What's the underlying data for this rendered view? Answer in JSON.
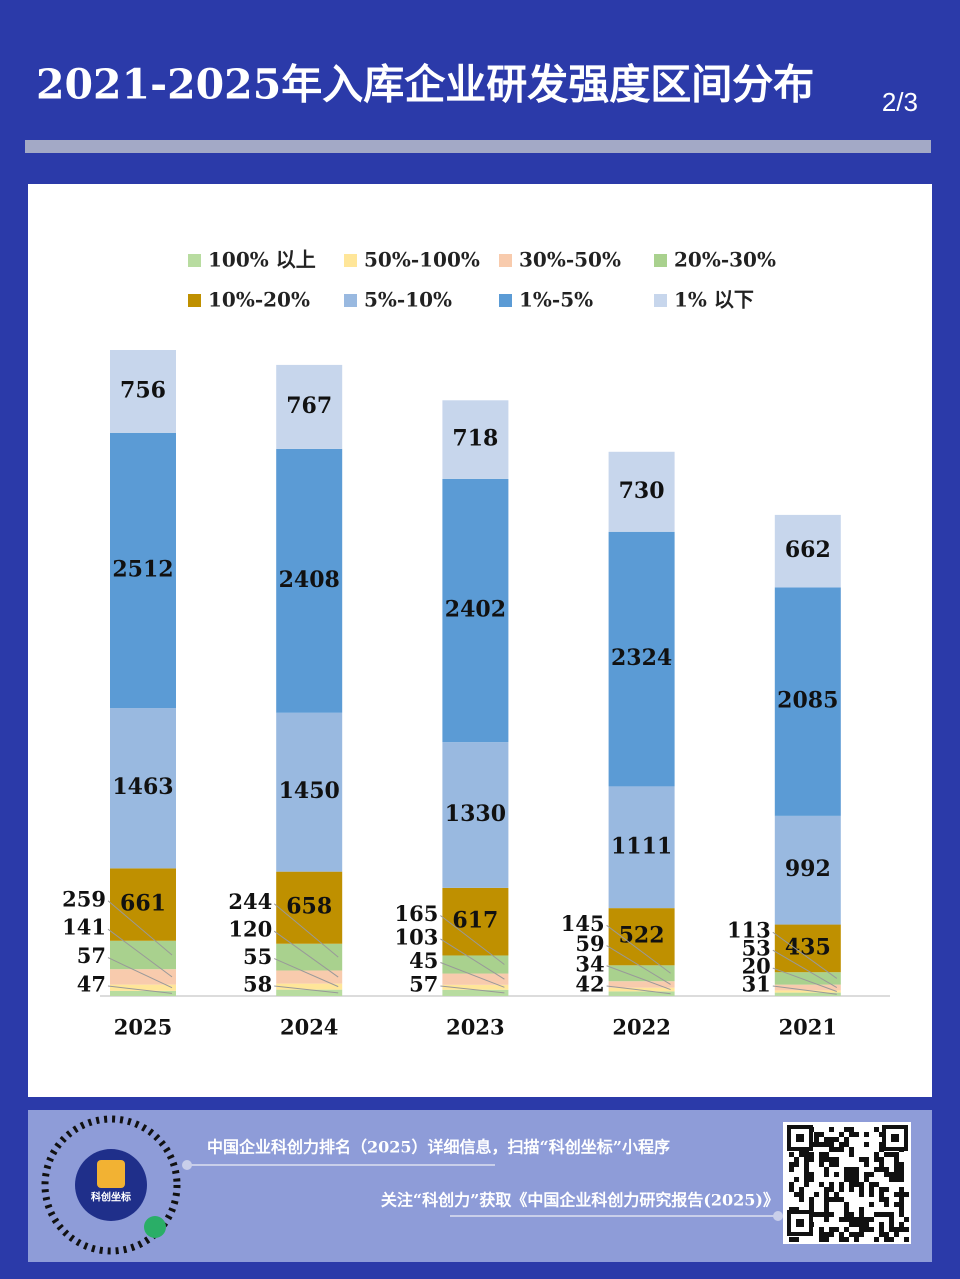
{
  "header": {
    "title": "2021-2025年入库企业研发强度区间分布",
    "page": "2/3"
  },
  "chart_data": {
    "type": "bar",
    "stacked": true,
    "categories": [
      "2025",
      "2024",
      "2023",
      "2022",
      "2021"
    ],
    "series": [
      {
        "name": "100% 以上",
        "color": "#b8dca0",
        "values": [
          47,
          58,
          57,
          42,
          31
        ]
      },
      {
        "name": "50%-100%",
        "color": "#ffe699",
        "values": [
          57,
          55,
          45,
          34,
          20
        ]
      },
      {
        "name": "30%-50%",
        "color": "#f8cbad",
        "values": [
          141,
          120,
          103,
          59,
          53
        ]
      },
      {
        "name": "20%-30%",
        "color": "#a9d18e",
        "values": [
          259,
          244,
          165,
          145,
          113
        ]
      },
      {
        "name": "10%-20%",
        "color": "#bf9000",
        "values": [
          661,
          658,
          617,
          522,
          435
        ]
      },
      {
        "name": "5%-10%",
        "color": "#99b9e0",
        "values": [
          1463,
          1450,
          1330,
          1111,
          992
        ]
      },
      {
        "name": "1%-5%",
        "color": "#5b9bd5",
        "values": [
          2512,
          2408,
          2402,
          2324,
          2085
        ]
      },
      {
        "name": "1% 以下",
        "color": "#c7d6ec",
        "values": [
          756,
          767,
          718,
          730,
          662
        ]
      }
    ]
  },
  "footer": {
    "line1": "中国企业科创力排名（2025）详细信息，扫描“科创坐标”小程序",
    "line2": "关注“科创力”获取《中国企业科创力研究报告(2025)》",
    "logo_text": "科创坐标"
  }
}
